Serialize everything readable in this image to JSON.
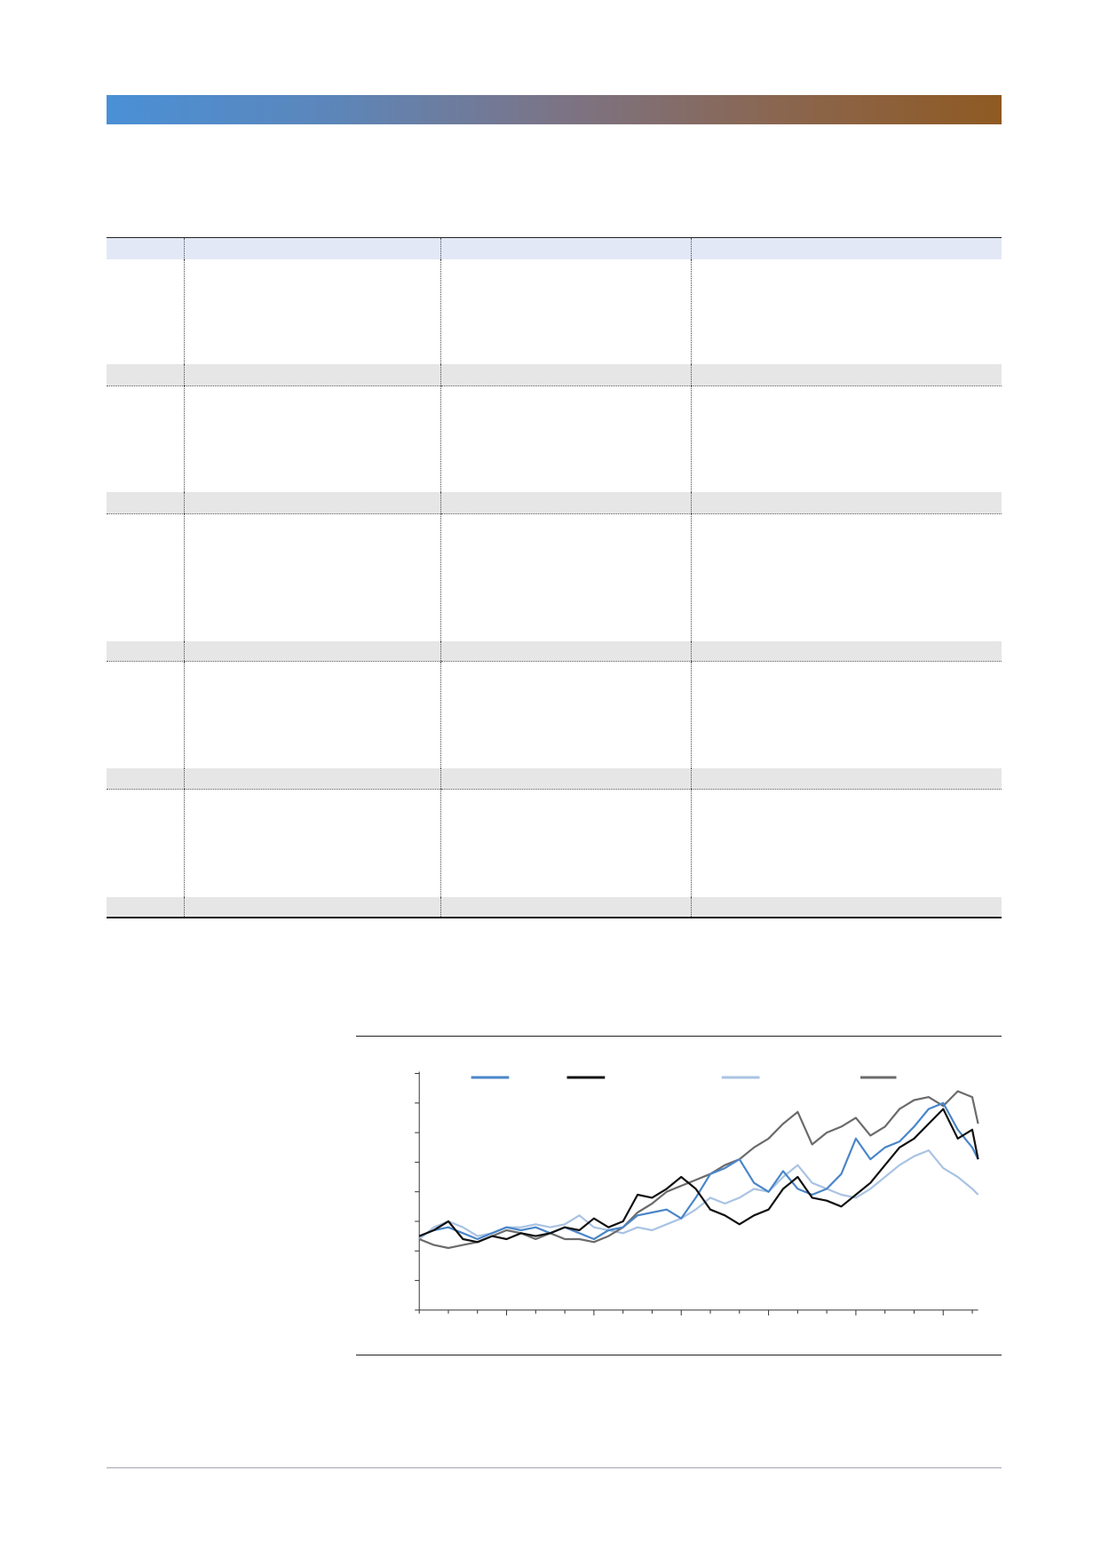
{
  "header_bar": {
    "gradient_colors": [
      "#4a90d6",
      "#5c86ba",
      "#7b7487",
      "#8a6650",
      "#8f5a22"
    ]
  },
  "table": {
    "header_bg": "#e3e8f7",
    "band_bg": "#e6e6e6"
  },
  "chart_data": {
    "type": "line",
    "x": [
      0,
      0.5,
      1,
      1.5,
      2,
      2.5,
      3,
      3.5,
      4,
      4.5,
      5,
      5.5,
      6,
      6.5,
      7,
      7.5,
      8,
      8.5,
      9,
      9.5,
      10,
      10.5,
      11,
      11.5,
      12,
      12.5,
      13,
      13.5,
      14,
      14.5,
      15,
      15.5,
      16,
      16.5,
      17,
      17.5,
      18,
      18.5,
      19,
      19.2
    ],
    "series": [
      {
        "color": "#4a86c8",
        "values": [
          2.5,
          2.7,
          2.8,
          2.6,
          2.4,
          2.6,
          2.8,
          2.7,
          2.8,
          2.6,
          2.8,
          2.6,
          2.4,
          2.7,
          2.8,
          3.2,
          3.3,
          3.4,
          3.1,
          3.8,
          4.6,
          4.8,
          5.1,
          4.3,
          4.0,
          4.7,
          4.1,
          3.9,
          4.1,
          4.6,
          5.8,
          5.1,
          5.5,
          5.7,
          6.2,
          6.8,
          7.0,
          6.1,
          5.5,
          5.1
        ]
      },
      {
        "color": "#111111",
        "values": [
          2.5,
          2.7,
          3.0,
          2.4,
          2.3,
          2.5,
          2.4,
          2.6,
          2.5,
          2.6,
          2.8,
          2.7,
          3.1,
          2.8,
          3.0,
          3.9,
          3.8,
          4.1,
          4.5,
          4.1,
          3.4,
          3.2,
          2.9,
          3.2,
          3.4,
          4.1,
          4.5,
          3.8,
          3.7,
          3.5,
          3.9,
          4.3,
          4.9,
          5.5,
          5.8,
          6.3,
          6.8,
          5.8,
          6.1,
          5.1
        ]
      },
      {
        "color": "#a9c3e3",
        "values": [
          2.4,
          2.8,
          3.0,
          2.8,
          2.5,
          2.6,
          2.8,
          2.8,
          2.9,
          2.8,
          2.9,
          3.2,
          2.8,
          2.7,
          2.6,
          2.8,
          2.7,
          2.9,
          3.1,
          3.4,
          3.8,
          3.6,
          3.8,
          4.1,
          4.0,
          4.5,
          4.9,
          4.3,
          4.1,
          3.9,
          3.8,
          4.1,
          4.5,
          4.9,
          5.2,
          5.4,
          4.8,
          4.5,
          4.1,
          3.9
        ]
      },
      {
        "color": "#6b6b6b",
        "values": [
          2.4,
          2.2,
          2.1,
          2.2,
          2.3,
          2.5,
          2.7,
          2.6,
          2.4,
          2.6,
          2.4,
          2.4,
          2.3,
          2.5,
          2.8,
          3.3,
          3.6,
          4.0,
          4.2,
          4.4,
          4.6,
          4.9,
          5.1,
          5.5,
          5.8,
          6.3,
          6.7,
          5.6,
          6.0,
          6.2,
          6.5,
          5.9,
          6.2,
          6.8,
          7.1,
          7.2,
          6.9,
          7.4,
          7.2,
          6.3
        ]
      }
    ],
    "xlim": [
      0,
      19.2
    ],
    "ylim": [
      0,
      8
    ],
    "xticks": [
      0,
      1,
      2,
      3,
      4,
      5,
      6,
      7,
      8,
      9,
      10,
      11,
      12,
      13,
      14,
      15,
      16,
      17,
      18,
      19
    ],
    "yticks": [
      0,
      1,
      2,
      3,
      4,
      5,
      6,
      7,
      8
    ],
    "grid": false,
    "legend": "top"
  }
}
